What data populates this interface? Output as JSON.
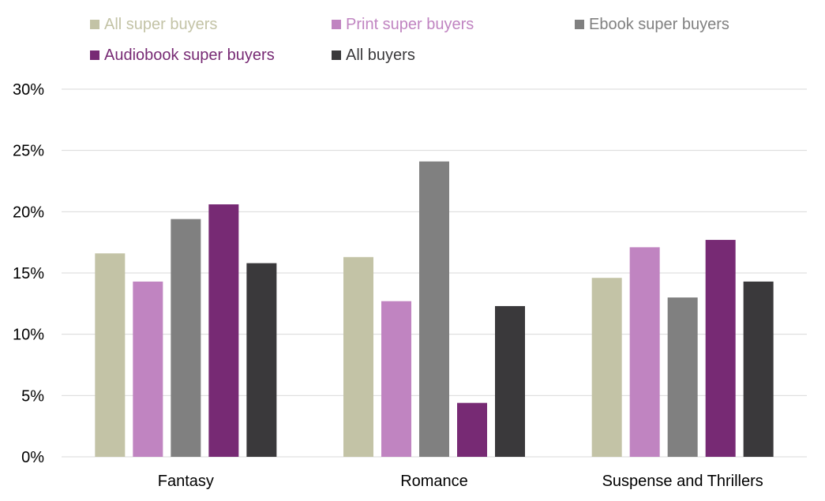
{
  "chart_data": {
    "type": "bar",
    "title": "",
    "xlabel": "",
    "ylabel": "",
    "categories": [
      "Fantasy",
      "Romance",
      "Suspense and Thrillers"
    ],
    "series": [
      {
        "name": "All super buyers",
        "color": "#c3c3a6",
        "values": [
          16.6,
          16.3,
          14.6
        ]
      },
      {
        "name": "Print super buyers",
        "color": "#c084c1",
        "values": [
          14.3,
          12.7,
          17.1
        ]
      },
      {
        "name": "Ebook super buyers",
        "color": "#808080",
        "values": [
          19.4,
          24.1,
          13.0
        ]
      },
      {
        "name": "Audiobook super buyers",
        "color": "#772a74",
        "values": [
          20.6,
          4.4,
          17.7
        ]
      },
      {
        "name": "All buyers",
        "color": "#3a393b",
        "values": [
          15.8,
          12.3,
          14.3
        ]
      }
    ],
    "ylim": [
      0,
      30
    ],
    "yticks": [
      "0%",
      "5%",
      "10%",
      "15%",
      "20%",
      "25%",
      "30%"
    ],
    "grid": true,
    "legend_position": "top"
  }
}
